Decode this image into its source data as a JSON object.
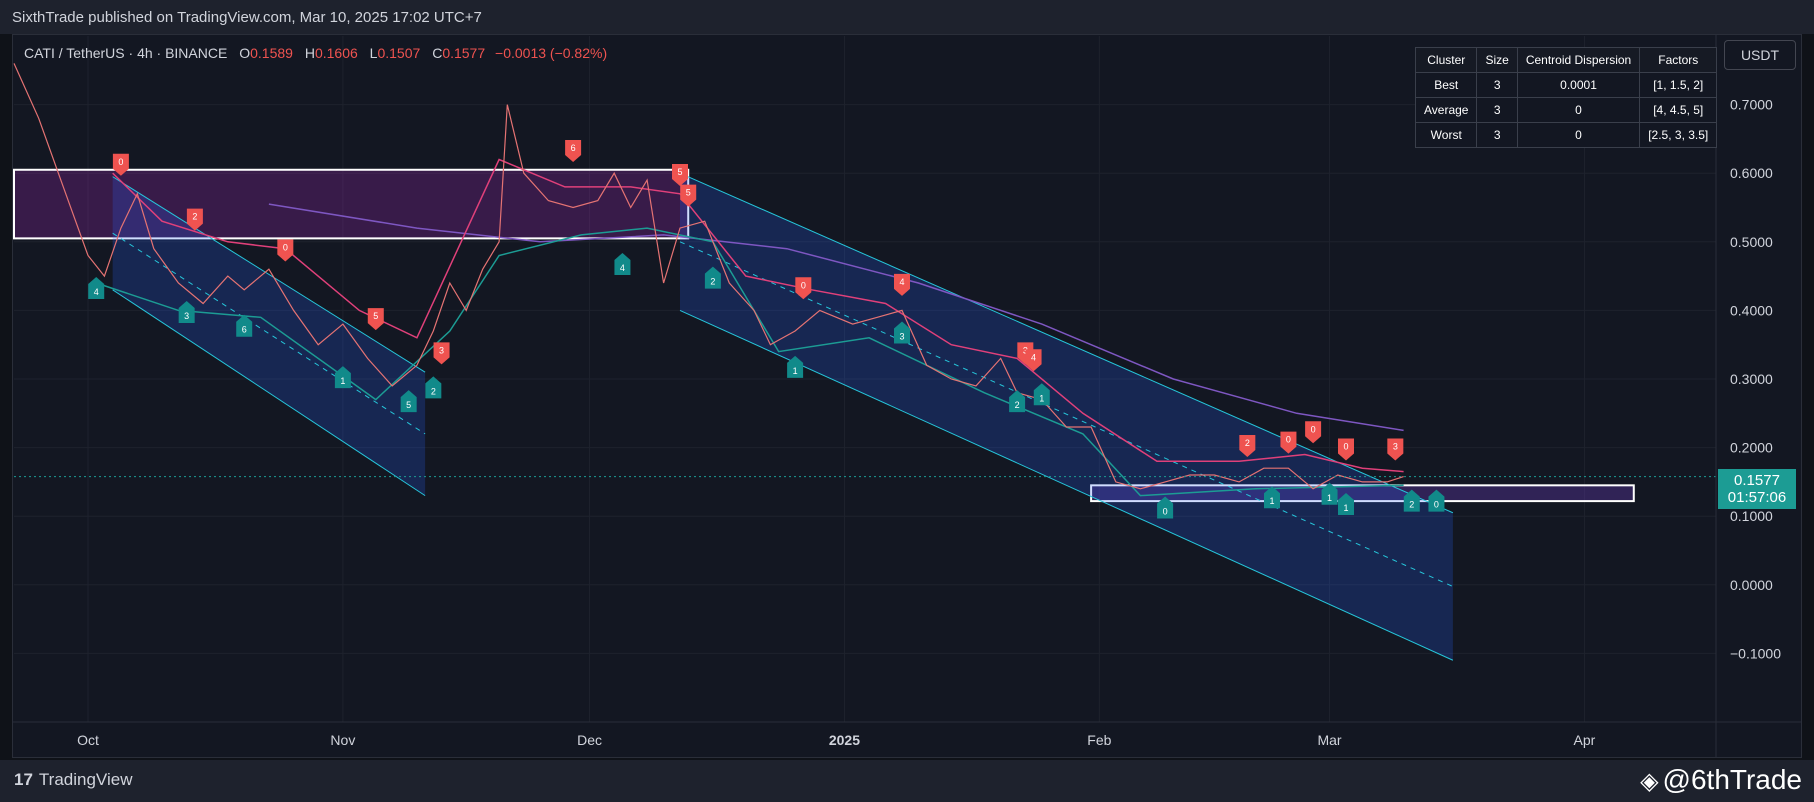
{
  "header": {
    "published": "SixthTrade published on TradingView.com, Mar 10, 2025 17:02 UTC+7"
  },
  "legend": {
    "symbol": "CATI / TetherUS · 4h · BINANCE",
    "open_label": "O",
    "open": "0.1589",
    "high_label": "H",
    "high": "0.1606",
    "low_label": "L",
    "low": "0.1507",
    "close_label": "C",
    "close": "0.1577",
    "change": "−0.0013 (−0.82%)"
  },
  "currency_button": "USDT",
  "price_tag": {
    "price": "0.1577",
    "countdown": "01:57:06"
  },
  "cluster_table": {
    "headers": [
      "Cluster",
      "Size",
      "Centroid Dispersion",
      "Factors"
    ],
    "rows": [
      [
        "Best",
        "3",
        "0.0001",
        "[1, 1.5, 2]"
      ],
      [
        "Average",
        "3",
        "0",
        "[4, 4.5, 5]"
      ],
      [
        "Worst",
        "3",
        "0",
        "[2.5, 3, 3.5]"
      ]
    ]
  },
  "footer": {
    "brand": "TradingView",
    "watermark": "@6thTrade"
  },
  "colors": {
    "up": "#26a69a",
    "down": "#ef5350",
    "channel": "#26c6da",
    "ma": "#7e57c2",
    "trail": "#e0407a",
    "support": "#1c9c94"
  },
  "chart_data": {
    "type": "line",
    "x_axis_ticks": [
      "Oct",
      "Nov",
      "Dec",
      "2025",
      "Feb",
      "Mar",
      "Apr"
    ],
    "y_axis_ticks": [
      "0.7000",
      "0.6000",
      "0.5000",
      "0.4000",
      "0.3000",
      "0.2000",
      "0.1000",
      "0.0000",
      "−0.1000"
    ],
    "ylim": [
      -0.2,
      0.8
    ],
    "x_range": [
      "2024-09-22",
      "2025-04-17"
    ],
    "price_series": [
      [
        "2024-09-22",
        0.76
      ],
      [
        "2024-09-25",
        0.68
      ],
      [
        "2024-09-28",
        0.58
      ],
      [
        "2024-10-01",
        0.48
      ],
      [
        "2024-10-03",
        0.45
      ],
      [
        "2024-10-05",
        0.52
      ],
      [
        "2024-10-07",
        0.57
      ],
      [
        "2024-10-09",
        0.49
      ],
      [
        "2024-10-12",
        0.44
      ],
      [
        "2024-10-15",
        0.41
      ],
      [
        "2024-10-18",
        0.45
      ],
      [
        "2024-10-20",
        0.43
      ],
      [
        "2024-10-23",
        0.46
      ],
      [
        "2024-10-26",
        0.4
      ],
      [
        "2024-10-29",
        0.35
      ],
      [
        "2024-11-01",
        0.38
      ],
      [
        "2024-11-04",
        0.33
      ],
      [
        "2024-11-07",
        0.29
      ],
      [
        "2024-11-10",
        0.32
      ],
      [
        "2024-11-12",
        0.37
      ],
      [
        "2024-11-14",
        0.44
      ],
      [
        "2024-11-16",
        0.4
      ],
      [
        "2024-11-18",
        0.46
      ],
      [
        "2024-11-20",
        0.5
      ],
      [
        "2024-11-21",
        0.7
      ],
      [
        "2024-11-23",
        0.6
      ],
      [
        "2024-11-26",
        0.56
      ],
      [
        "2024-11-29",
        0.55
      ],
      [
        "2024-12-02",
        0.56
      ],
      [
        "2024-12-04",
        0.6
      ],
      [
        "2024-12-06",
        0.55
      ],
      [
        "2024-12-08",
        0.59
      ],
      [
        "2024-12-10",
        0.44
      ],
      [
        "2024-12-12",
        0.52
      ],
      [
        "2024-12-15",
        0.53
      ],
      [
        "2024-12-18",
        0.44
      ],
      [
        "2024-12-21",
        0.4
      ],
      [
        "2024-12-23",
        0.35
      ],
      [
        "2024-12-26",
        0.37
      ],
      [
        "2024-12-29",
        0.4
      ],
      [
        "2025-01-02",
        0.38
      ],
      [
        "2025-01-05",
        0.39
      ],
      [
        "2025-01-08",
        0.4
      ],
      [
        "2025-01-11",
        0.32
      ],
      [
        "2025-01-14",
        0.3
      ],
      [
        "2025-01-17",
        0.29
      ],
      [
        "2025-01-20",
        0.33
      ],
      [
        "2025-01-22",
        0.28
      ],
      [
        "2025-01-25",
        0.27
      ],
      [
        "2025-01-28",
        0.23
      ],
      [
        "2025-01-31",
        0.23
      ],
      [
        "2025-02-03",
        0.15
      ],
      [
        "2025-02-06",
        0.14
      ],
      [
        "2025-02-09",
        0.15
      ],
      [
        "2025-02-12",
        0.16
      ],
      [
        "2025-02-15",
        0.16
      ],
      [
        "2025-02-18",
        0.15
      ],
      [
        "2025-02-21",
        0.17
      ],
      [
        "2025-02-24",
        0.17
      ],
      [
        "2025-02-27",
        0.14
      ],
      [
        "2025-03-02",
        0.16
      ],
      [
        "2025-03-05",
        0.15
      ],
      [
        "2025-03-08",
        0.15
      ],
      [
        "2025-03-10",
        0.1577
      ]
    ],
    "trail_series": [
      [
        "2024-10-04",
        0.6
      ],
      [
        "2024-10-10",
        0.53
      ],
      [
        "2024-10-18",
        0.5
      ],
      [
        "2024-10-25",
        0.49
      ],
      [
        "2024-11-03",
        0.4
      ],
      [
        "2024-11-10",
        0.36
      ],
      [
        "2024-11-20",
        0.62
      ],
      [
        "2024-11-28",
        0.58
      ],
      [
        "2024-12-06",
        0.58
      ],
      [
        "2024-12-12",
        0.57
      ],
      [
        "2024-12-20",
        0.45
      ],
      [
        "2024-12-28",
        0.43
      ],
      [
        "2025-01-06",
        0.41
      ],
      [
        "2025-01-14",
        0.35
      ],
      [
        "2025-01-22",
        0.33
      ],
      [
        "2025-01-30",
        0.25
      ],
      [
        "2025-02-08",
        0.18
      ],
      [
        "2025-02-18",
        0.18
      ],
      [
        "2025-02-26",
        0.19
      ],
      [
        "2025-03-05",
        0.17
      ],
      [
        "2025-03-10",
        0.165
      ]
    ],
    "support_series": [
      [
        "2024-10-02",
        0.44
      ],
      [
        "2024-10-12",
        0.4
      ],
      [
        "2024-10-22",
        0.39
      ],
      [
        "2024-11-05",
        0.27
      ],
      [
        "2024-11-14",
        0.37
      ],
      [
        "2024-11-20",
        0.48
      ],
      [
        "2024-11-30",
        0.51
      ],
      [
        "2024-12-08",
        0.52
      ],
      [
        "2024-12-16",
        0.5
      ],
      [
        "2024-12-24",
        0.34
      ],
      [
        "2025-01-04",
        0.36
      ],
      [
        "2025-01-18",
        0.28
      ],
      [
        "2025-01-30",
        0.22
      ],
      [
        "2025-02-06",
        0.13
      ],
      [
        "2025-02-20",
        0.14
      ],
      [
        "2025-03-10",
        0.145
      ]
    ],
    "ma_series": [
      [
        "2024-10-23",
        0.555
      ],
      [
        "2024-11-10",
        0.52
      ],
      [
        "2024-11-25",
        0.5
      ],
      [
        "2024-12-10",
        0.51
      ],
      [
        "2024-12-25",
        0.49
      ],
      [
        "2025-01-10",
        0.44
      ],
      [
        "2025-01-25",
        0.38
      ],
      [
        "2025-02-10",
        0.3
      ],
      [
        "2025-02-25",
        0.25
      ],
      [
        "2025-03-10",
        0.225
      ]
    ],
    "channels": [
      {
        "start": "2024-10-04",
        "end": "2024-11-11",
        "upper": [
          0.595,
          0.31
        ],
        "lower": [
          0.43,
          0.13
        ]
      },
      {
        "start": "2024-12-12",
        "end": "2025-03-16",
        "upper": [
          0.6,
          0.105
        ],
        "lower": [
          0.4,
          -0.11
        ]
      }
    ],
    "zones": [
      {
        "start": "2024-09-22",
        "end": "2024-12-13",
        "top": 0.605,
        "bottom": 0.505,
        "label": ""
      },
      {
        "start": "2025-01-31",
        "end": "2025-04-07",
        "top": 0.145,
        "bottom": 0.122,
        "label": ""
      }
    ],
    "sell_labels": [
      {
        "date": "2024-10-05",
        "y": 0.605,
        "text": "0"
      },
      {
        "date": "2024-10-14",
        "y": 0.525,
        "text": "2"
      },
      {
        "date": "2024-10-25",
        "y": 0.48,
        "text": "0"
      },
      {
        "date": "2024-11-05",
        "y": 0.38,
        "text": "5"
      },
      {
        "date": "2024-11-13",
        "y": 0.33,
        "text": "3"
      },
      {
        "date": "2024-11-29",
        "y": 0.625,
        "text": "6"
      },
      {
        "date": "2024-12-12",
        "y": 0.59,
        "text": "5"
      },
      {
        "date": "2024-12-13",
        "y": 0.56,
        "text": "5"
      },
      {
        "date": "2024-12-27",
        "y": 0.425,
        "text": "0"
      },
      {
        "date": "2025-01-08",
        "y": 0.43,
        "text": "4"
      },
      {
        "date": "2025-01-23",
        "y": 0.33,
        "text": "3"
      },
      {
        "date": "2025-01-24",
        "y": 0.32,
        "text": "4"
      },
      {
        "date": "2025-02-19",
        "y": 0.195,
        "text": "2"
      },
      {
        "date": "2025-02-24",
        "y": 0.2,
        "text": "0"
      },
      {
        "date": "2025-02-27",
        "y": 0.215,
        "text": "0"
      },
      {
        "date": "2025-03-03",
        "y": 0.19,
        "text": "0"
      },
      {
        "date": "2025-03-09",
        "y": 0.19,
        "text": "3"
      }
    ],
    "buy_labels": [
      {
        "date": "2024-10-02",
        "y": 0.44,
        "text": "4"
      },
      {
        "date": "2024-10-13",
        "y": 0.405,
        "text": "3"
      },
      {
        "date": "2024-10-20",
        "y": 0.385,
        "text": "6"
      },
      {
        "date": "2024-11-01",
        "y": 0.31,
        "text": "1"
      },
      {
        "date": "2024-11-09",
        "y": 0.275,
        "text": "5"
      },
      {
        "date": "2024-11-12",
        "y": 0.295,
        "text": "2"
      },
      {
        "date": "2024-12-05",
        "y": 0.475,
        "text": "4"
      },
      {
        "date": "2024-12-16",
        "y": 0.455,
        "text": "2"
      },
      {
        "date": "2024-12-26",
        "y": 0.325,
        "text": "1"
      },
      {
        "date": "2025-01-08",
        "y": 0.375,
        "text": "3"
      },
      {
        "date": "2025-01-22",
        "y": 0.275,
        "text": "2"
      },
      {
        "date": "2025-01-25",
        "y": 0.285,
        "text": "1"
      },
      {
        "date": "2025-02-09",
        "y": 0.12,
        "text": "0"
      },
      {
        "date": "2025-02-22",
        "y": 0.135,
        "text": "1"
      },
      {
        "date": "2025-02-29",
        "y": 0.14,
        "text": "1"
      },
      {
        "date": "2025-03-03",
        "y": 0.125,
        "text": "1"
      },
      {
        "date": "2025-03-11",
        "y": 0.13,
        "text": "2"
      },
      {
        "date": "2025-03-14",
        "y": 0.13,
        "text": "0"
      }
    ],
    "xlabel": "",
    "ylabel": "",
    "grid": true,
    "last_price": 0.1577
  }
}
